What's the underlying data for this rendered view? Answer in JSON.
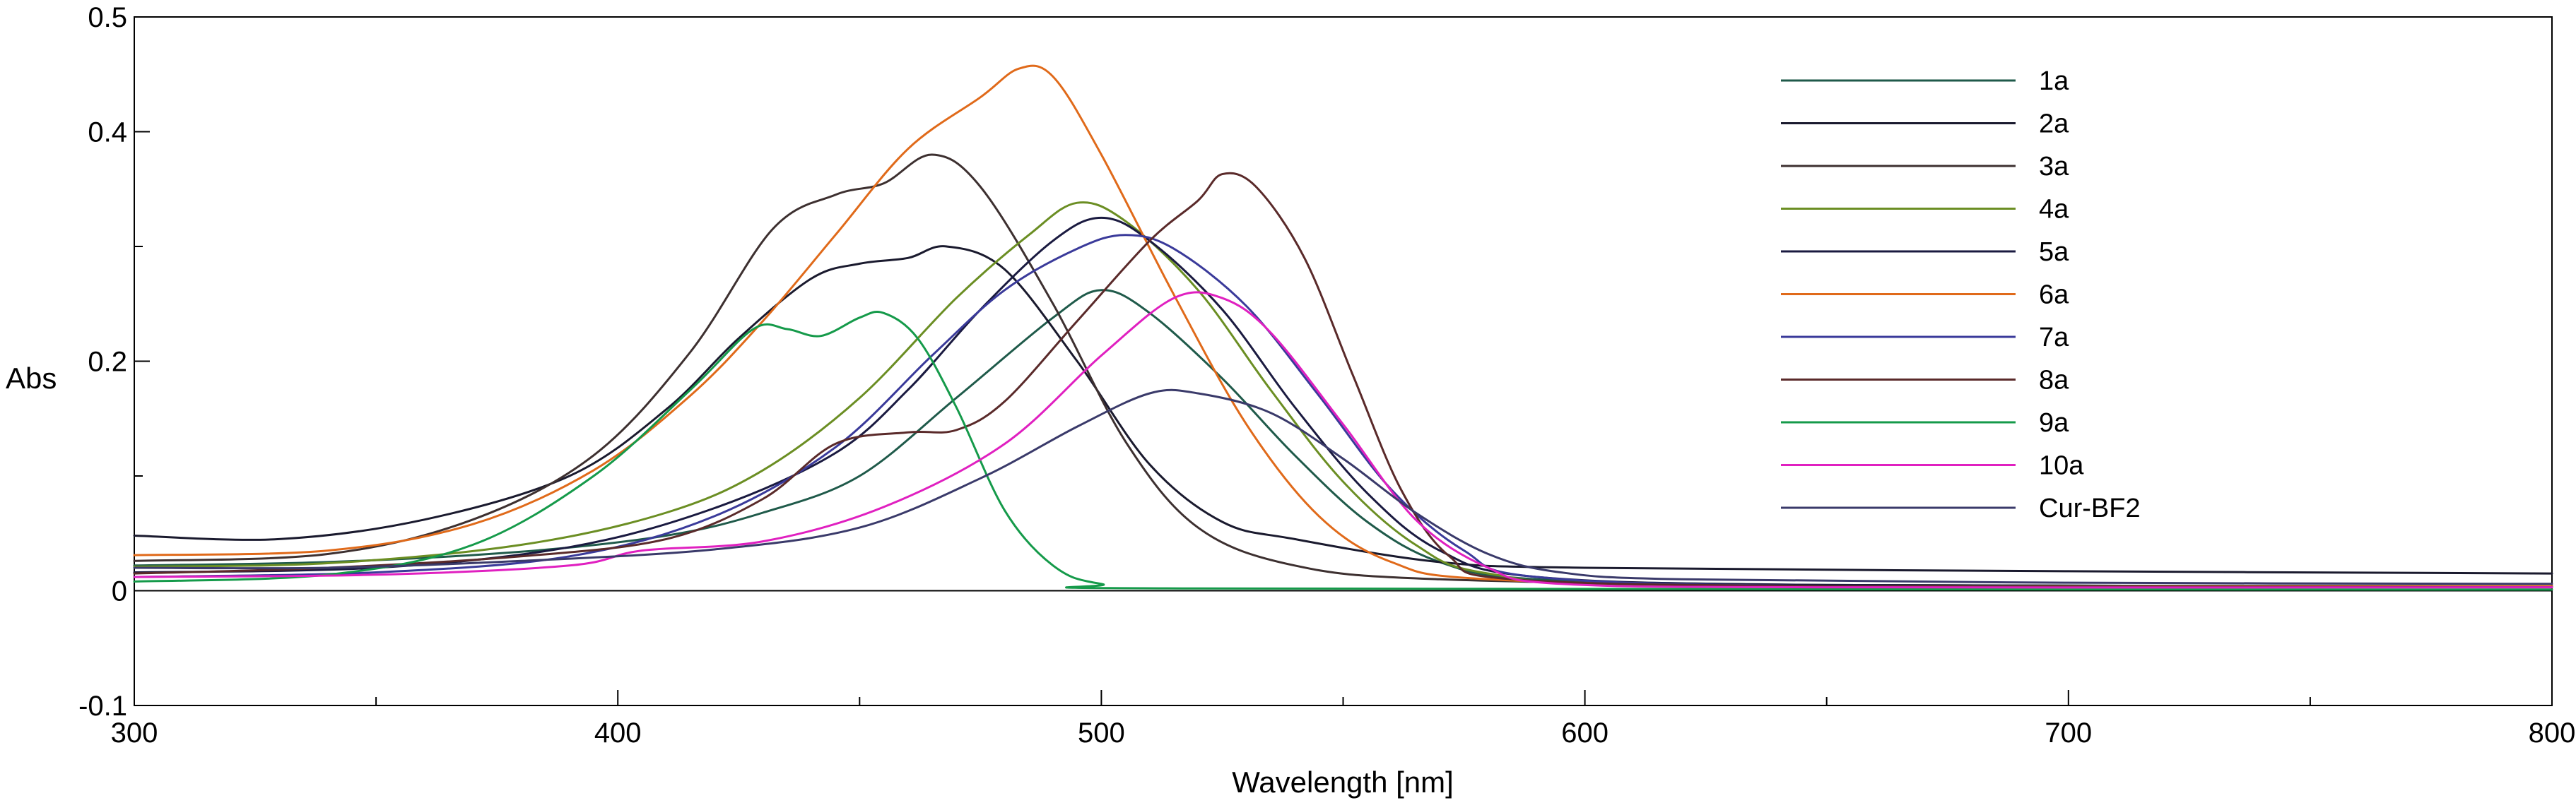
{
  "chart_data": {
    "type": "line",
    "title": "",
    "xlabel": "Wavelength [nm]",
    "ylabel": "Abs",
    "xlim": [
      300,
      800
    ],
    "ylim": [
      -0.1,
      0.5
    ],
    "x_ticks": [
      300,
      400,
      500,
      600,
      700,
      800
    ],
    "x_tick_labels": [
      "300",
      "400",
      "500",
      "600",
      "700",
      "800"
    ],
    "x_minor_ticks": [
      350,
      450,
      550,
      650,
      750
    ],
    "y_ticks": [
      -0.1,
      0,
      0.2,
      0.4,
      0.5
    ],
    "y_tick_labels": [
      "-0.1",
      "0",
      "0.2",
      "0.4",
      "0.5"
    ],
    "y_minor_ticks": [
      0.1,
      0.3
    ],
    "grid": false,
    "legend_position": "top-right",
    "series": [
      {
        "name": "1a",
        "color": "#1f5a4a",
        "points": [
          [
            300,
            0.022
          ],
          [
            340,
            0.025
          ],
          [
            380,
            0.034
          ],
          [
            410,
            0.048
          ],
          [
            430,
            0.068
          ],
          [
            450,
            0.1
          ],
          [
            470,
            0.168
          ],
          [
            490,
            0.238
          ],
          [
            500,
            0.262
          ],
          [
            510,
            0.242
          ],
          [
            525,
            0.185
          ],
          [
            540,
            0.118
          ],
          [
            555,
            0.06
          ],
          [
            570,
            0.025
          ],
          [
            590,
            0.01
          ],
          [
            650,
            0.005
          ],
          [
            800,
            0.004
          ]
        ]
      },
      {
        "name": "2a",
        "color": "#1a1a2e",
        "points": [
          [
            300,
            0.048
          ],
          [
            330,
            0.045
          ],
          [
            360,
            0.062
          ],
          [
            390,
            0.1
          ],
          [
            410,
            0.158
          ],
          [
            425,
            0.22
          ],
          [
            440,
            0.272
          ],
          [
            450,
            0.285
          ],
          [
            460,
            0.29
          ],
          [
            468,
            0.3
          ],
          [
            480,
            0.28
          ],
          [
            495,
            0.2
          ],
          [
            510,
            0.11
          ],
          [
            525,
            0.06
          ],
          [
            540,
            0.045
          ],
          [
            570,
            0.025
          ],
          [
            600,
            0.02
          ],
          [
            700,
            0.017
          ],
          [
            800,
            0.015
          ]
        ]
      },
      {
        "name": "3a",
        "color": "#3d3030",
        "points": [
          [
            300,
            0.026
          ],
          [
            340,
            0.032
          ],
          [
            370,
            0.062
          ],
          [
            395,
            0.118
          ],
          [
            415,
            0.208
          ],
          [
            432,
            0.315
          ],
          [
            445,
            0.345
          ],
          [
            455,
            0.355
          ],
          [
            465,
            0.38
          ],
          [
            475,
            0.352
          ],
          [
            490,
            0.25
          ],
          [
            505,
            0.13
          ],
          [
            520,
            0.055
          ],
          [
            540,
            0.022
          ],
          [
            570,
            0.01
          ],
          [
            650,
            0.005
          ],
          [
            800,
            0.004
          ]
        ]
      },
      {
        "name": "4a",
        "color": "#6b8e23",
        "points": [
          [
            300,
            0.021
          ],
          [
            340,
            0.024
          ],
          [
            380,
            0.04
          ],
          [
            410,
            0.068
          ],
          [
            430,
            0.105
          ],
          [
            450,
            0.168
          ],
          [
            470,
            0.255
          ],
          [
            485,
            0.31
          ],
          [
            495,
            0.338
          ],
          [
            505,
            0.322
          ],
          [
            520,
            0.262
          ],
          [
            535,
            0.175
          ],
          [
            550,
            0.095
          ],
          [
            565,
            0.04
          ],
          [
            580,
            0.015
          ],
          [
            620,
            0.005
          ],
          [
            800,
            0.004
          ]
        ]
      },
      {
        "name": "5a",
        "color": "#1a1a40",
        "points": [
          [
            300,
            0.016
          ],
          [
            350,
            0.02
          ],
          [
            390,
            0.038
          ],
          [
            420,
            0.072
          ],
          [
            445,
            0.12
          ],
          [
            460,
            0.175
          ],
          [
            475,
            0.245
          ],
          [
            490,
            0.305
          ],
          [
            500,
            0.325
          ],
          [
            510,
            0.305
          ],
          [
            525,
            0.245
          ],
          [
            540,
            0.16
          ],
          [
            555,
            0.085
          ],
          [
            570,
            0.035
          ],
          [
            590,
            0.012
          ],
          [
            650,
            0.005
          ],
          [
            800,
            0.004
          ]
        ]
      },
      {
        "name": "6a",
        "color": "#e06a1a",
        "points": [
          [
            300,
            0.031
          ],
          [
            340,
            0.035
          ],
          [
            370,
            0.058
          ],
          [
            395,
            0.105
          ],
          [
            415,
            0.17
          ],
          [
            430,
            0.235
          ],
          [
            445,
            0.31
          ],
          [
            460,
            0.385
          ],
          [
            475,
            0.43
          ],
          [
            483,
            0.455
          ],
          [
            490,
            0.448
          ],
          [
            500,
            0.38
          ],
          [
            515,
            0.258
          ],
          [
            530,
            0.145
          ],
          [
            545,
            0.065
          ],
          [
            560,
            0.025
          ],
          [
            580,
            0.01
          ],
          [
            650,
            0.004
          ],
          [
            800,
            0.004
          ]
        ]
      },
      {
        "name": "7a",
        "color": "#3a3a9a",
        "points": [
          [
            300,
            0.012
          ],
          [
            350,
            0.016
          ],
          [
            390,
            0.03
          ],
          [
            420,
            0.065
          ],
          [
            445,
            0.125
          ],
          [
            465,
            0.205
          ],
          [
            480,
            0.262
          ],
          [
            495,
            0.298
          ],
          [
            505,
            0.31
          ],
          [
            515,
            0.298
          ],
          [
            530,
            0.248
          ],
          [
            545,
            0.17
          ],
          [
            560,
            0.088
          ],
          [
            575,
            0.035
          ],
          [
            590,
            0.012
          ],
          [
            650,
            0.004
          ],
          [
            800,
            0.003
          ]
        ]
      },
      {
        "name": "8a",
        "color": "#5a2a2a",
        "points": [
          [
            300,
            0.015
          ],
          [
            340,
            0.02
          ],
          [
            380,
            0.03
          ],
          [
            410,
            0.045
          ],
          [
            430,
            0.08
          ],
          [
            445,
            0.128
          ],
          [
            460,
            0.138
          ],
          [
            470,
            0.14
          ],
          [
            480,
            0.165
          ],
          [
            495,
            0.235
          ],
          [
            510,
            0.305
          ],
          [
            520,
            0.34
          ],
          [
            525,
            0.363
          ],
          [
            532,
            0.352
          ],
          [
            542,
            0.29
          ],
          [
            552,
            0.188
          ],
          [
            562,
            0.088
          ],
          [
            572,
            0.03
          ],
          [
            585,
            0.01
          ],
          [
            650,
            0.004
          ],
          [
            800,
            0.003
          ]
        ]
      },
      {
        "name": "9a",
        "color": "#159a4a",
        "points": [
          [
            300,
            0.008
          ],
          [
            340,
            0.014
          ],
          [
            370,
            0.04
          ],
          [
            395,
            0.1
          ],
          [
            415,
            0.175
          ],
          [
            428,
            0.228
          ],
          [
            435,
            0.228
          ],
          [
            442,
            0.222
          ],
          [
            450,
            0.238
          ],
          [
            455,
            0.242
          ],
          [
            462,
            0.22
          ],
          [
            470,
            0.16
          ],
          [
            480,
            0.07
          ],
          [
            490,
            0.022
          ],
          [
            500,
            0.006
          ],
          [
            520,
            0.002
          ],
          [
            800,
            0.001
          ]
        ]
      },
      {
        "name": "10a",
        "color": "#e020c0",
        "points": [
          [
            300,
            0.012
          ],
          [
            350,
            0.014
          ],
          [
            390,
            0.022
          ],
          [
            405,
            0.035
          ],
          [
            430,
            0.043
          ],
          [
            455,
            0.073
          ],
          [
            480,
            0.128
          ],
          [
            500,
            0.205
          ],
          [
            515,
            0.255
          ],
          [
            525,
            0.255
          ],
          [
            535,
            0.225
          ],
          [
            550,
            0.145
          ],
          [
            565,
            0.062
          ],
          [
            580,
            0.02
          ],
          [
            595,
            0.006
          ],
          [
            650,
            0.003
          ],
          [
            800,
            0.003
          ]
        ]
      },
      {
        "name": "Cur-BF2",
        "color": "#3a3a6a",
        "points": [
          [
            300,
            0.02
          ],
          [
            340,
            0.02
          ],
          [
            380,
            0.026
          ],
          [
            420,
            0.036
          ],
          [
            450,
            0.055
          ],
          [
            475,
            0.098
          ],
          [
            495,
            0.143
          ],
          [
            510,
            0.172
          ],
          [
            520,
            0.172
          ],
          [
            535,
            0.155
          ],
          [
            550,
            0.115
          ],
          [
            565,
            0.068
          ],
          [
            580,
            0.032
          ],
          [
            595,
            0.016
          ],
          [
            620,
            0.01
          ],
          [
            700,
            0.007
          ],
          [
            800,
            0.006
          ]
        ]
      }
    ]
  }
}
